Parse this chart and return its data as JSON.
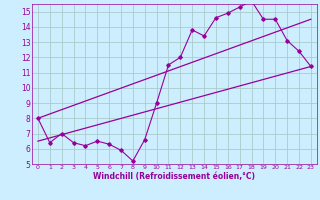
{
  "xlabel": "Windchill (Refroidissement éolien,°C)",
  "bg_color": "#cceeff",
  "line_color": "#990099",
  "grid_color": "#aacccc",
  "xlim": [
    -0.5,
    23.5
  ],
  "ylim": [
    5,
    15.5
  ],
  "xticks": [
    0,
    1,
    2,
    3,
    4,
    5,
    6,
    7,
    8,
    9,
    10,
    11,
    12,
    13,
    14,
    15,
    16,
    17,
    18,
    19,
    20,
    21,
    22,
    23
  ],
  "yticks": [
    5,
    6,
    7,
    8,
    9,
    10,
    11,
    12,
    13,
    14,
    15
  ],
  "line1_x": [
    0,
    1,
    2,
    3,
    4,
    5,
    6,
    7,
    8,
    9,
    10,
    11,
    12,
    13,
    14,
    15,
    16,
    17,
    18,
    19,
    20,
    21,
    22,
    23
  ],
  "line1_y": [
    8.0,
    6.4,
    7.0,
    6.4,
    6.2,
    6.5,
    6.3,
    5.9,
    5.2,
    6.6,
    9.0,
    11.5,
    12.0,
    13.8,
    13.4,
    14.6,
    14.9,
    15.3,
    15.7,
    14.5,
    14.5,
    13.1,
    12.4,
    11.4
  ],
  "line2_x": [
    0,
    23
  ],
  "line2_y": [
    6.5,
    11.4
  ],
  "line3_x": [
    0,
    23
  ],
  "line3_y": [
    8.0,
    14.5
  ]
}
